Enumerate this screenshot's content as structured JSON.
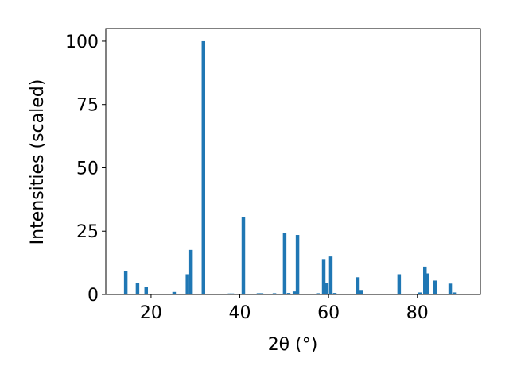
{
  "chart_data": {
    "type": "bar",
    "x_label": "2θ (°)",
    "y_label": "Intensities (scaled)",
    "x": [
      14.3,
      16.95,
      18.9,
      25.2,
      28.2,
      29.0,
      31.8,
      33.3,
      34.2,
      37.7,
      38.3,
      40.8,
      42.2,
      44.2,
      44.9,
      47.8,
      50.1,
      51.0,
      52.3,
      53.0,
      56.6,
      57.6,
      58.9,
      59.6,
      60.5,
      61.4,
      62.1,
      64.6,
      66.6,
      67.3,
      68.0,
      69.5,
      72.2,
      75.9,
      77.0,
      79.2,
      80.6,
      81.7,
      82.2,
      84.0,
      87.4,
      88.3
    ],
    "values": [
      9.3,
      4.6,
      3.0,
      1.0,
      8.0,
      17.6,
      100,
      0.3,
      0.3,
      0.4,
      0.4,
      30.7,
      0.3,
      0.5,
      0.5,
      0.5,
      24.3,
      0.6,
      1.2,
      23.5,
      0.3,
      0.5,
      14.0,
      4.5,
      15.0,
      0.6,
      0.3,
      0.3,
      6.8,
      1.8,
      0.3,
      0.3,
      0.3,
      8.0,
      0.3,
      0.3,
      0.8,
      11.0,
      8.3,
      5.5,
      4.3,
      0.8
    ],
    "color": "#1f77b4",
    "xlim": [
      9.8,
      94.2
    ],
    "xticks": [
      20,
      40,
      60,
      80
    ],
    "ylim": [
      0,
      105
    ],
    "yticks": [
      0,
      25,
      50,
      75,
      100
    ]
  }
}
